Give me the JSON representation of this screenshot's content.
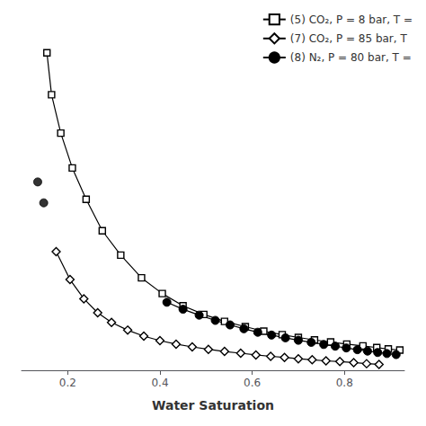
{
  "chart_data": {
    "type": "line",
    "xlabel": "Water Saturation",
    "xlim": [
      0.1,
      0.93
    ],
    "xticks": [
      0.2,
      0.4,
      0.6,
      0.8
    ],
    "ylim": [
      0.04,
      1.05
    ],
    "tick_labels": "x",
    "grid": false,
    "legend": "upper right",
    "series": [
      {
        "name": "(5) CO₂, P = 8 bar, T =",
        "type": "line",
        "color": "#000000",
        "marker": "open square",
        "x": [
          0.155,
          0.165,
          0.185,
          0.21,
          0.24,
          0.275,
          0.315,
          0.36,
          0.405,
          0.45,
          0.495,
          0.54,
          0.585,
          0.625,
          0.665,
          0.7,
          0.735,
          0.77,
          0.805,
          0.84,
          0.87,
          0.895,
          0.92
        ],
        "values": [
          0.95,
          0.83,
          0.72,
          0.62,
          0.53,
          0.44,
          0.37,
          0.305,
          0.26,
          0.225,
          0.2,
          0.18,
          0.165,
          0.152,
          0.142,
          0.134,
          0.127,
          0.121,
          0.115,
          0.11,
          0.105,
          0.101,
          0.098
        ]
      },
      {
        "name": "(7) CO₂, P = 85 bar, T",
        "type": "line",
        "color": "#000000",
        "marker": "open diamond",
        "x": [
          0.175,
          0.205,
          0.235,
          0.265,
          0.295,
          0.33,
          0.365,
          0.4,
          0.435,
          0.47,
          0.505,
          0.54,
          0.575,
          0.608,
          0.64,
          0.67,
          0.7,
          0.73,
          0.76,
          0.79,
          0.82,
          0.848,
          0.875
        ],
        "values": [
          0.38,
          0.3,
          0.245,
          0.205,
          0.177,
          0.155,
          0.138,
          0.125,
          0.115,
          0.107,
          0.1,
          0.094,
          0.089,
          0.084,
          0.08,
          0.077,
          0.073,
          0.07,
          0.067,
          0.065,
          0.062,
          0.059,
          0.057
        ]
      },
      {
        "type": "scatter",
        "color": "#000000",
        "marker": "filled circle",
        "x": [
          0.135,
          0.148
        ],
        "values": [
          0.58,
          0.52
        ]
      },
      {
        "name": "(8) N₂, P = 80 bar, T =",
        "type": "line",
        "color": "#000000",
        "marker": "filled circle",
        "x": [
          0.415,
          0.45,
          0.485,
          0.52,
          0.552,
          0.582,
          0.612,
          0.642,
          0.672,
          0.7,
          0.728,
          0.755,
          0.78,
          0.804,
          0.828,
          0.85,
          0.872,
          0.892,
          0.912
        ],
        "values": [
          0.235,
          0.215,
          0.198,
          0.183,
          0.17,
          0.159,
          0.149,
          0.141,
          0.133,
          0.126,
          0.12,
          0.114,
          0.109,
          0.104,
          0.099,
          0.095,
          0.091,
          0.088,
          0.085
        ]
      }
    ]
  }
}
